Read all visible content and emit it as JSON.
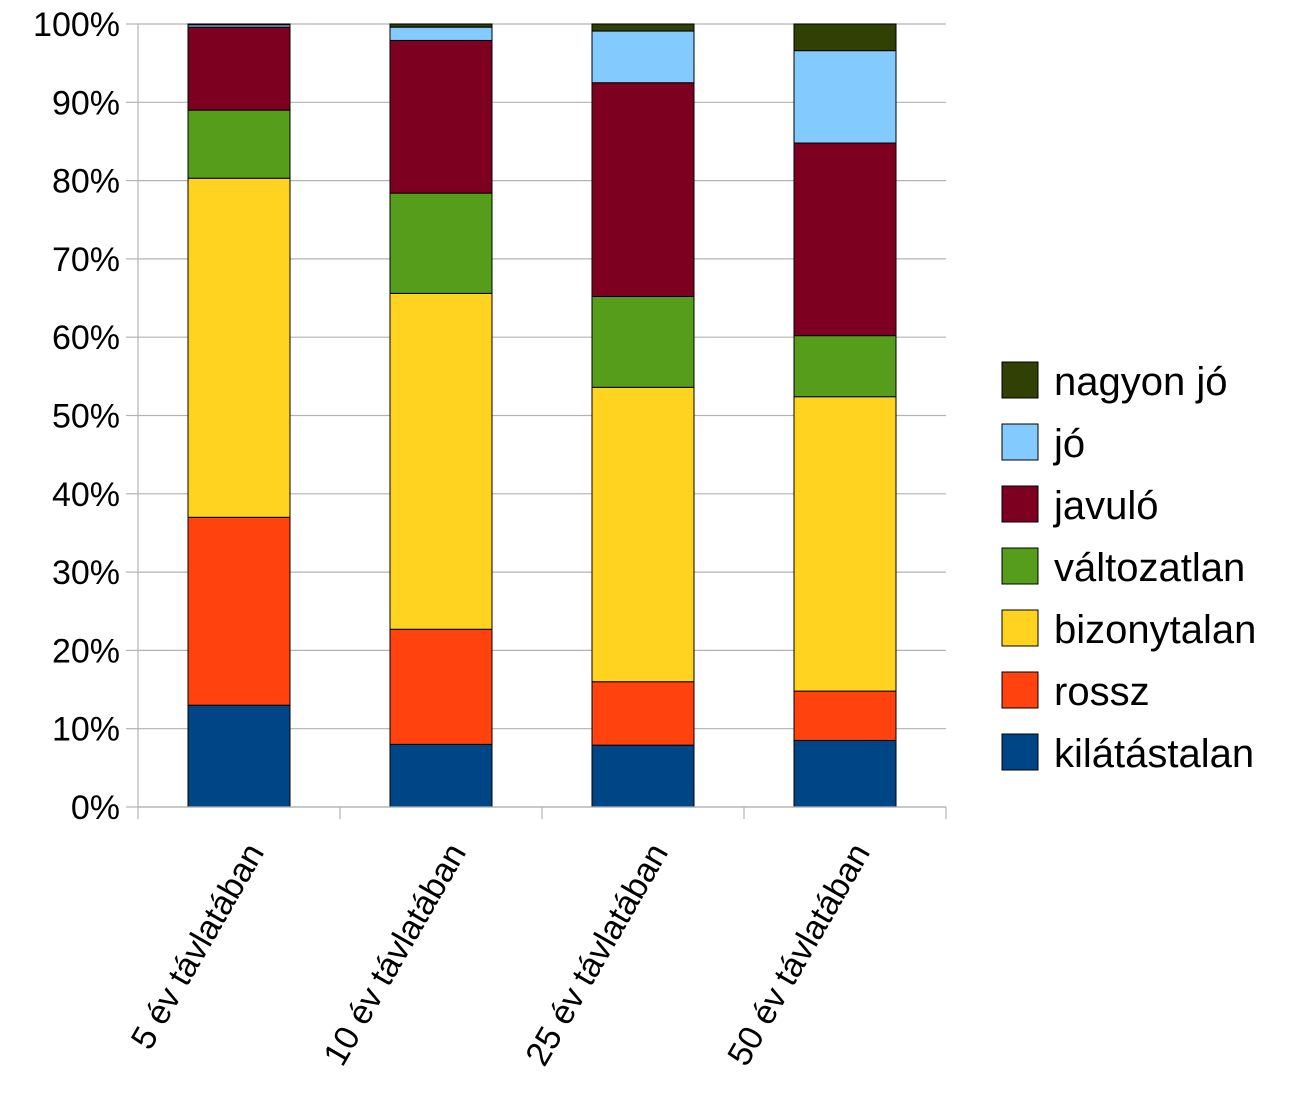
{
  "chart_data": {
    "type": "bar",
    "stacked": true,
    "percent_stacked": true,
    "title": "",
    "xlabel": "",
    "ylabel": "",
    "ylim": [
      0,
      100
    ],
    "y_ticks": [
      "0%",
      "10%",
      "20%",
      "30%",
      "40%",
      "50%",
      "60%",
      "70%",
      "80%",
      "90%",
      "100%"
    ],
    "grid": true,
    "legend_position": "right",
    "categories": [
      "5 év távlatában",
      "10 év távlatában",
      "25 év távlatában",
      "50 év távlatában"
    ],
    "series": [
      {
        "name": "kilátástalan",
        "color": "#004586",
        "values": [
          13.0,
          8.0,
          7.9,
          8.5
        ]
      },
      {
        "name": "rossz",
        "color": "#FF420E",
        "values": [
          24.0,
          14.7,
          8.1,
          6.3
        ]
      },
      {
        "name": "bizonytalan",
        "color": "#FFD320",
        "values": [
          43.3,
          42.9,
          37.6,
          37.6
        ]
      },
      {
        "name": "változatlan",
        "color": "#579D1C",
        "values": [
          8.7,
          12.8,
          11.6,
          7.8
        ]
      },
      {
        "name": "javuló",
        "color": "#7E0021",
        "values": [
          10.6,
          19.5,
          27.3,
          24.6
        ]
      },
      {
        "name": "jó",
        "color": "#83CAFF",
        "values": [
          0.3,
          1.7,
          6.6,
          11.8
        ]
      },
      {
        "name": "nagyon jó",
        "color": "#314004",
        "values": [
          0.1,
          0.4,
          0.9,
          3.4
        ]
      }
    ]
  }
}
